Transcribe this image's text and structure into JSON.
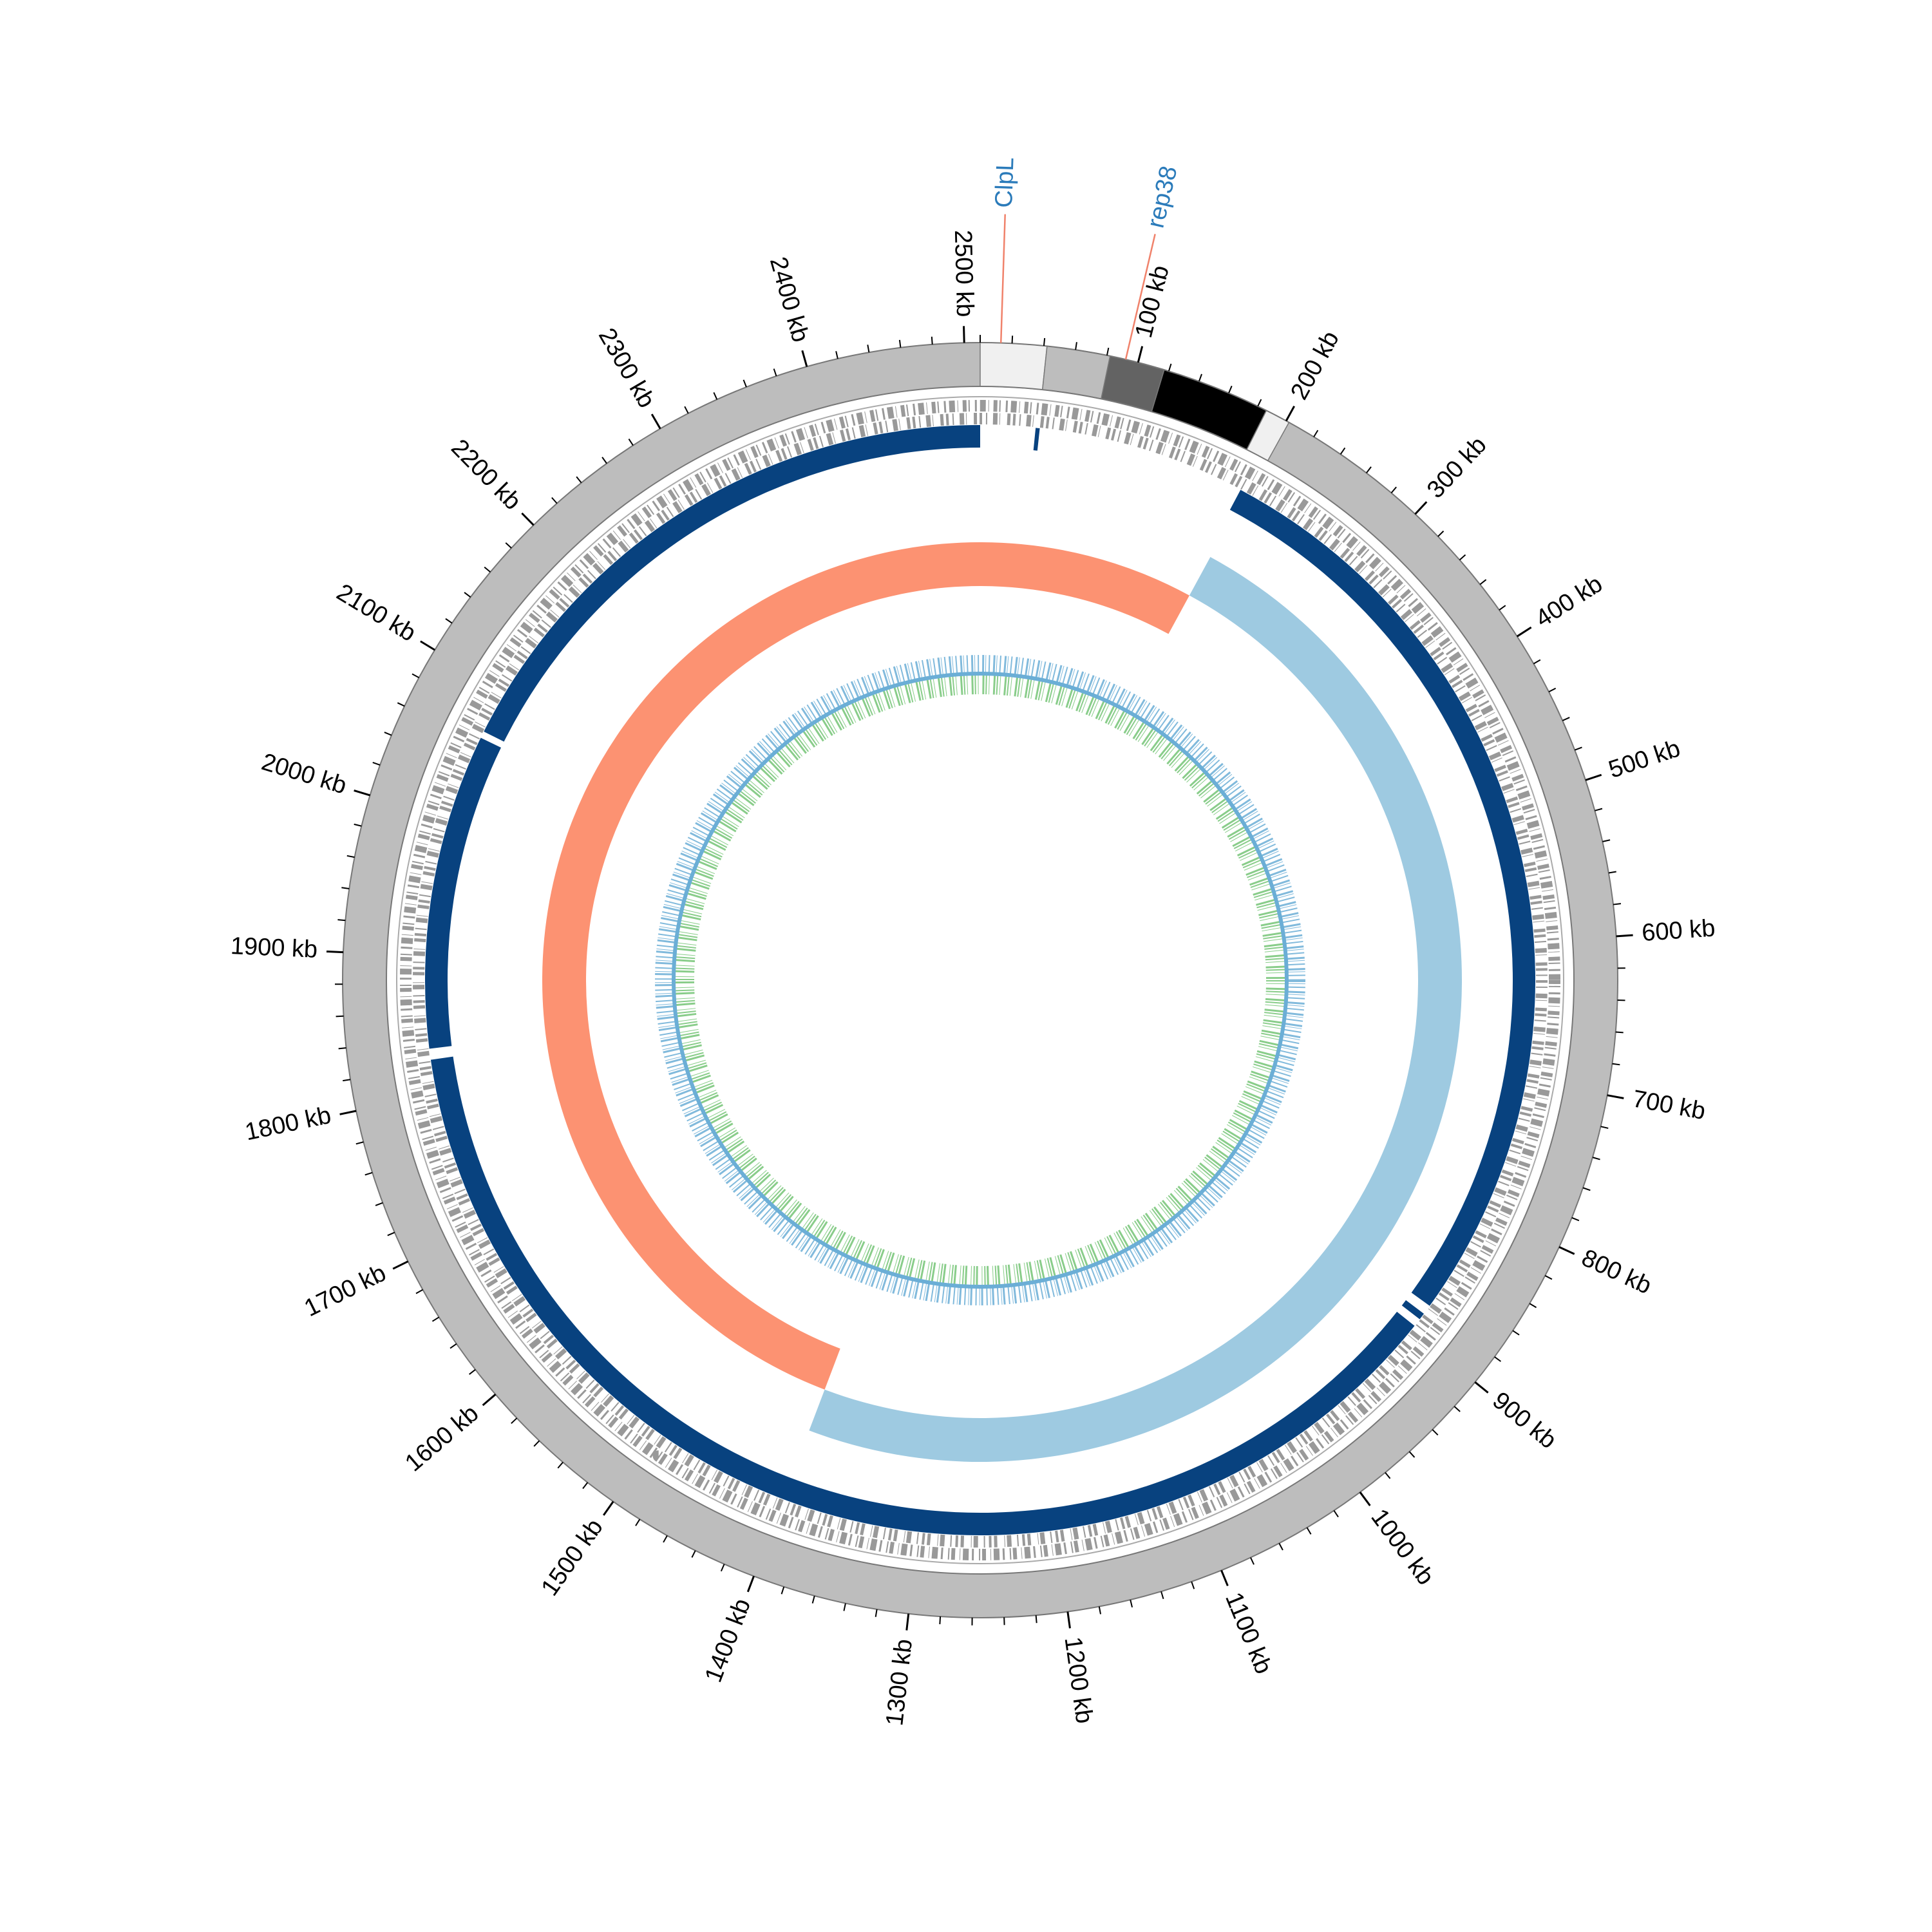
{
  "genome_length_kb": 2510,
  "ticks": [
    {
      "value": 100,
      "label": "100 kb"
    },
    {
      "value": 200,
      "label": "200 kb"
    },
    {
      "value": 300,
      "label": "300 kb"
    },
    {
      "value": 400,
      "label": "400 kb"
    },
    {
      "value": 500,
      "label": "500 kb"
    },
    {
      "value": 600,
      "label": "600 kb"
    },
    {
      "value": 700,
      "label": "700 kb"
    },
    {
      "value": 800,
      "label": "800 kb"
    },
    {
      "value": 900,
      "label": "900 kb"
    },
    {
      "value": 1000,
      "label": "1000 kb"
    },
    {
      "value": 1100,
      "label": "1100 kb"
    },
    {
      "value": 1200,
      "label": "1200 kb"
    },
    {
      "value": 1300,
      "label": "1300 kb"
    },
    {
      "value": 1400,
      "label": "1400 kb"
    },
    {
      "value": 1500,
      "label": "1500 kb"
    },
    {
      "value": 1600,
      "label": "1600 kb"
    },
    {
      "value": 1700,
      "label": "1700 kb"
    },
    {
      "value": 1800,
      "label": "1800 kb"
    },
    {
      "value": 1900,
      "label": "1900 kb"
    },
    {
      "value": 2000,
      "label": "2000 kb"
    },
    {
      "value": 2100,
      "label": "2100 kb"
    },
    {
      "value": 2200,
      "label": "2200 kb"
    },
    {
      "value": 2300,
      "label": "2300 kb"
    },
    {
      "value": 2400,
      "label": "2400 kb"
    },
    {
      "value": 2500,
      "label": "2500 kb"
    }
  ],
  "minor_tick_step_kb": 20,
  "backbone_color": "#bdbdbd",
  "backbone_blocks": [
    {
      "start": 0,
      "end": 42,
      "color": "#f0f0f0"
    },
    {
      "start": 42,
      "end": 82,
      "color": "#bdbdbd"
    },
    {
      "start": 82,
      "end": 117,
      "color": "#636363"
    },
    {
      "start": 117,
      "end": 186,
      "color": "#000000"
    },
    {
      "start": 186,
      "end": 202,
      "color": "#f0f0f0"
    }
  ],
  "genes": [
    {
      "name": "ClpL",
      "position_kb": 13
    },
    {
      "name": "rep38",
      "position_kb": 92
    }
  ],
  "conserved_segments": {
    "color": "#08427f",
    "ranges": [
      {
        "start": 40,
        "end": 43
      },
      {
        "start": 195,
        "end": 878
      },
      {
        "start": 885,
        "end": 890
      },
      {
        "start": 896,
        "end": 1825
      },
      {
        "start": 1833,
        "end": 2063
      },
      {
        "start": 2068,
        "end": 2510
      }
    ]
  },
  "gc_skew": {
    "positive_color": "#9ecae1",
    "negative_color": "#fc9272",
    "positive_ranges": [
      {
        "start": 199,
        "end": 1400
      }
    ],
    "negative_ranges": [
      {
        "start": 1400,
        "end": 2510
      },
      {
        "start": 0,
        "end": 199
      }
    ]
  },
  "gc_content": {
    "above_color": "#6baed6",
    "below_color": "#74c476"
  }
}
